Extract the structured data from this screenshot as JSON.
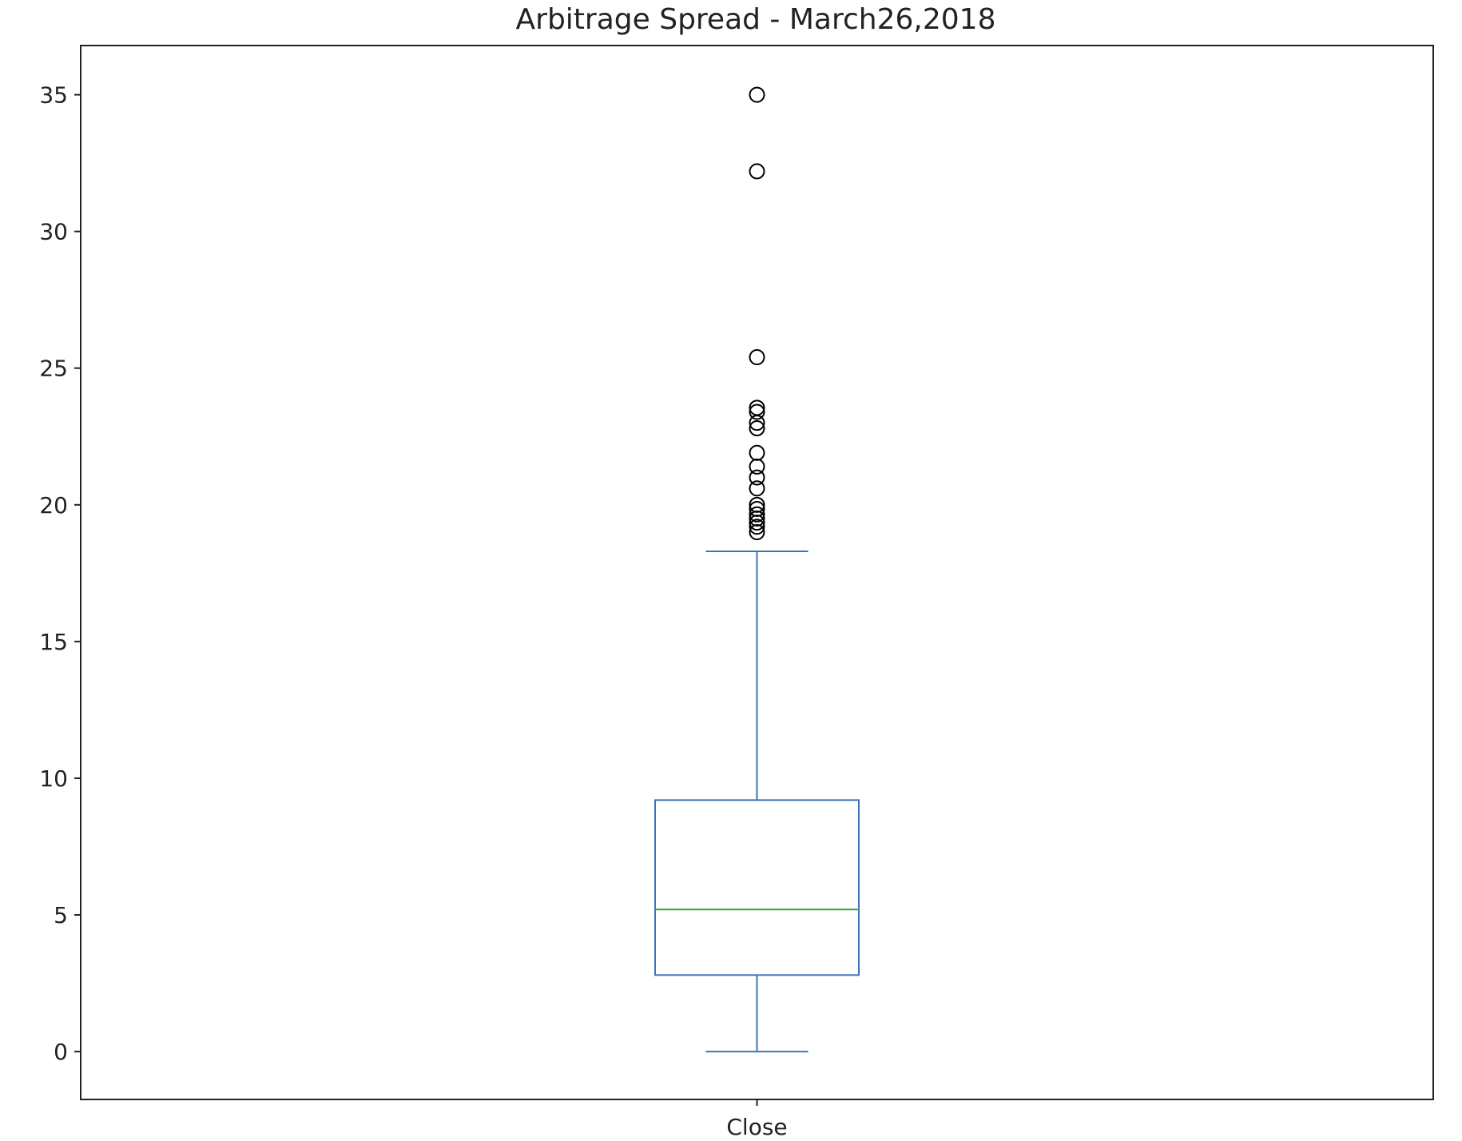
{
  "chart_data": {
    "type": "box",
    "title": "Arbitrage Spread - March26,2018",
    "xlabel": "",
    "ylabel": "",
    "categories": [
      "Close"
    ],
    "ylim": [
      -1.75,
      36.8
    ],
    "yticks": [
      0,
      5,
      10,
      15,
      20,
      25,
      30,
      35
    ],
    "grid": false,
    "boxes": [
      {
        "category": "Close",
        "whisker_low": 0.0,
        "q1": 2.8,
        "median": 5.2,
        "q3": 9.2,
        "whisker_high": 18.3,
        "outliers": [
          19.0,
          19.2,
          19.35,
          19.5,
          19.65,
          19.85,
          20.0,
          20.6,
          21.0,
          21.4,
          21.9,
          22.8,
          23.0,
          23.4,
          23.55,
          25.4,
          32.2,
          35.0
        ]
      }
    ],
    "colors": {
      "box": "#3d74b8",
      "median": "#3ca13c",
      "outlier": "#000000",
      "axes": "#222222"
    }
  }
}
